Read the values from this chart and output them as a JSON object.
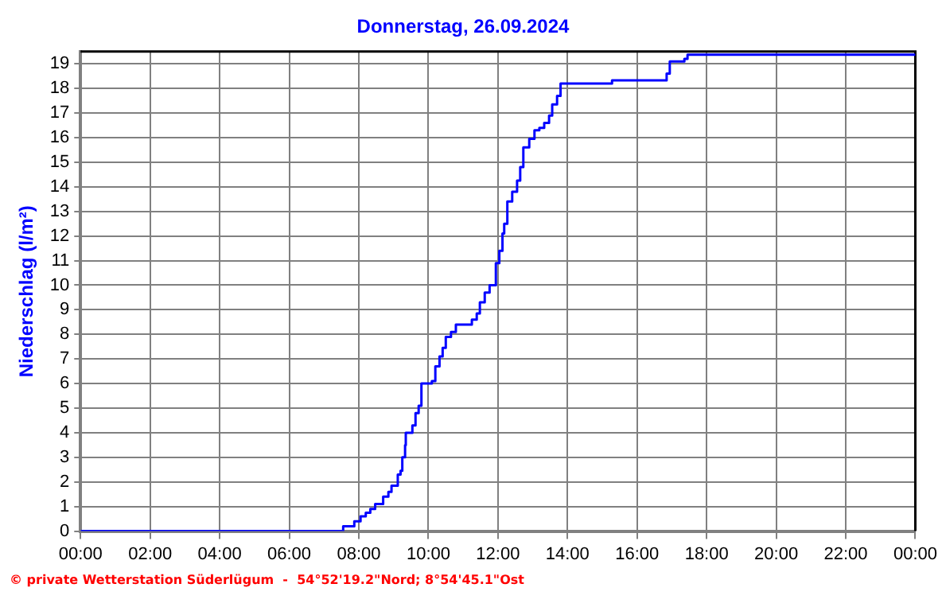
{
  "chart_data": {
    "type": "step",
    "title": "Donnerstag, 26.09.2024",
    "ylabel": "Niederschlag (l/m²)",
    "annotations": [
      "© private Wetterstation Süderlügum  -  54°52'19.2\"Nord; 8°54'45.1\"Ost"
    ],
    "x": [
      0,
      7.55,
      7.87,
      8.05,
      8.2,
      8.33,
      8.47,
      8.7,
      8.85,
      8.94,
      9.12,
      9.2,
      9.25,
      9.33,
      9.35,
      9.54,
      9.63,
      9.72,
      9.8,
      10.1,
      10.2,
      10.32,
      10.41,
      10.5,
      10.65,
      10.79,
      11.25,
      11.39,
      11.48,
      11.62,
      11.76,
      11.94,
      12.04,
      12.13,
      12.18,
      12.27,
      12.41,
      12.55,
      12.64,
      12.73,
      12.9,
      13.05,
      13.19,
      13.33,
      13.47,
      13.56,
      13.7,
      13.8,
      15.28,
      16.85,
      16.94,
      17.36,
      17.45,
      24
    ],
    "series": [
      {
        "color": "#0000ff",
        "values": [
          0,
          0.2,
          0.4,
          0.6,
          0.75,
          0.9,
          1.1,
          1.4,
          1.6,
          1.85,
          2.3,
          2.45,
          3.0,
          3.5,
          4.0,
          4.3,
          4.8,
          5.1,
          6.0,
          6.1,
          6.7,
          7.1,
          7.45,
          7.9,
          8.1,
          8.4,
          8.6,
          8.85,
          9.3,
          9.7,
          10.0,
          10.9,
          11.4,
          12.1,
          12.5,
          13.4,
          13.8,
          14.25,
          14.8,
          15.6,
          15.95,
          16.3,
          16.4,
          16.6,
          16.9,
          17.35,
          17.7,
          18.2,
          18.33,
          18.6,
          19.1,
          19.2,
          19.37,
          19.4
        ]
      }
    ],
    "xlim": [
      0,
      24
    ],
    "xticks": [
      {
        "value": 0,
        "label": "00:00"
      },
      {
        "value": 2,
        "label": "02:00"
      },
      {
        "value": 4,
        "label": "04:00"
      },
      {
        "value": 6,
        "label": "06:00"
      },
      {
        "value": 8,
        "label": "08:00"
      },
      {
        "value": 10,
        "label": "10:00"
      },
      {
        "value": 12,
        "label": "12:00"
      },
      {
        "value": 14,
        "label": "14:00"
      },
      {
        "value": 16,
        "label": "16:00"
      },
      {
        "value": 18,
        "label": "18:00"
      },
      {
        "value": 20,
        "label": "20:00"
      },
      {
        "value": 22,
        "label": "22:00"
      },
      {
        "value": 24,
        "label": "00:00"
      }
    ],
    "ylim": [
      0,
      19.5
    ],
    "yticks": [
      0,
      1,
      2,
      3,
      4,
      5,
      6,
      7,
      8,
      9,
      10,
      11,
      12,
      13,
      14,
      15,
      16,
      17,
      18,
      19
    ],
    "grid": true,
    "legend": false,
    "line_style": "solid",
    "marker": "none"
  }
}
